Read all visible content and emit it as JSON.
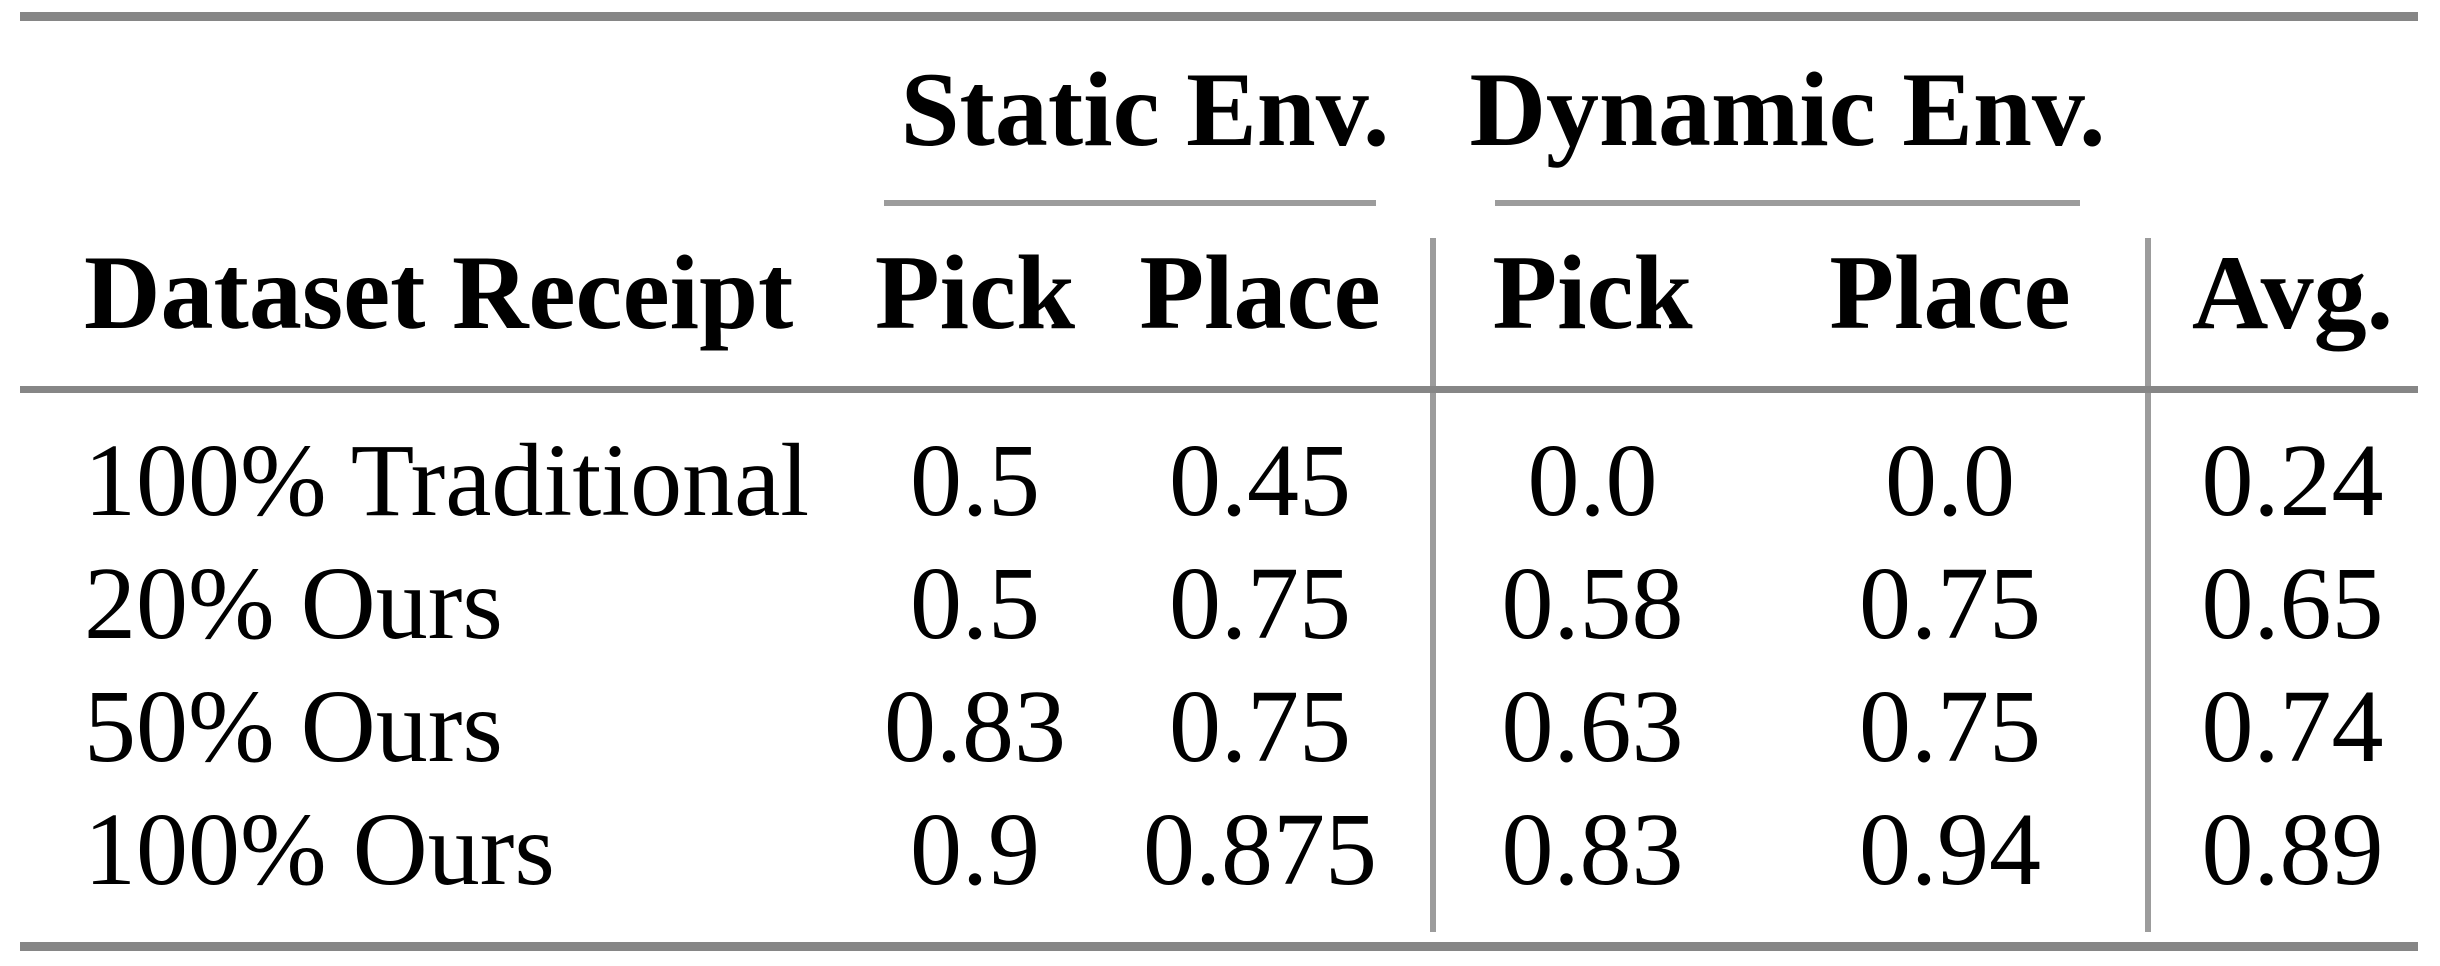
{
  "table": {
    "group_headers": [
      {
        "label": "Static Env."
      },
      {
        "label": "Dynamic Env."
      }
    ],
    "columns": [
      "Dataset Receipt",
      "Pick",
      "Place",
      "Pick",
      "Place",
      "Avg."
    ],
    "rows": [
      {
        "dataset": "100% Traditional",
        "static_pick": "0.5",
        "static_place": "0.45",
        "dynamic_pick": "0.0",
        "dynamic_place": "0.0",
        "avg": "0.24"
      },
      {
        "dataset": "20% Ours",
        "static_pick": "0.5",
        "static_place": "0.75",
        "dynamic_pick": "0.58",
        "dynamic_place": "0.75",
        "avg": "0.65"
      },
      {
        "dataset": "50% Ours",
        "static_pick": "0.83",
        "static_place": "0.75",
        "dynamic_pick": "0.63",
        "dynamic_place": "0.75",
        "avg": "0.74"
      },
      {
        "dataset": "100% Ours",
        "static_pick": "0.9",
        "static_place": "0.875",
        "dynamic_pick": "0.83",
        "dynamic_place": "0.94",
        "avg": "0.89"
      }
    ],
    "colors": {
      "thick_rule": "#868686",
      "thin_rule": "#9c9c9c",
      "text": "#000000",
      "background": "#ffffff"
    }
  },
  "chart_data": {
    "type": "table",
    "columns": [
      "Dataset Receipt",
      "Static Env. Pick",
      "Static Env. Place",
      "Dynamic Env. Pick",
      "Dynamic Env. Place",
      "Avg."
    ],
    "rows": [
      [
        "100% Traditional",
        0.5,
        0.45,
        0.0,
        0.0,
        0.24
      ],
      [
        "20% Ours",
        0.5,
        0.75,
        0.58,
        0.75,
        0.65
      ],
      [
        "50% Ours",
        0.83,
        0.75,
        0.63,
        0.75,
        0.74
      ],
      [
        "100% Ours",
        0.9,
        0.875,
        0.83,
        0.94,
        0.89
      ]
    ]
  }
}
